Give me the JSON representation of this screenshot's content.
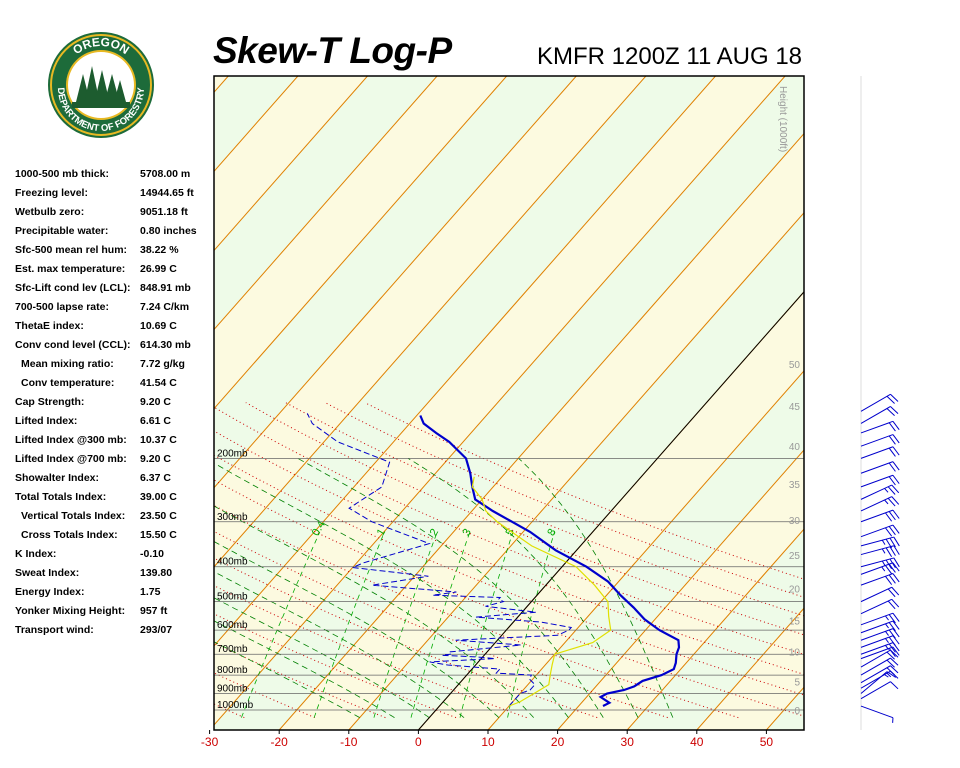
{
  "header": {
    "title": "Skew-T Log-P",
    "subtitle": "KMFR 1200Z 11 AUG 18"
  },
  "logo": {
    "top_text": "OREGON",
    "bottom_text": "DEPARTMENT OF FORESTRY",
    "colors": {
      "ring": "#1d6b3a",
      "gold": "#e8b923",
      "tree": "#1d5c2f"
    }
  },
  "stats": [
    {
      "label": "1000-500 mb thick:",
      "value": "5708.00 m"
    },
    {
      "label": "Freezing level:",
      "value": "14944.65 ft"
    },
    {
      "label": "Wetbulb zero:",
      "value": "9051.18 ft"
    },
    {
      "label": "Precipitable water:",
      "value": "0.80 inches"
    },
    {
      "label": "Sfc-500 mean rel hum:",
      "value": "38.22 %"
    },
    {
      "label": "Est. max temperature:",
      "value": "26.99 C"
    },
    {
      "label": "Sfc-Lift cond lev (LCL):",
      "value": "848.91 mb"
    },
    {
      "label": "700-500 lapse rate:",
      "value": "7.24 C/km"
    },
    {
      "label": "ThetaE index:",
      "value": "10.69 C"
    },
    {
      "label": "Conv cond level (CCL):",
      "value": "614.30 mb"
    },
    {
      "label": "Mean mixing ratio:",
      "value": "7.72 g/kg",
      "indent": true
    },
    {
      "label": "Conv temperature:",
      "value": "41.54 C",
      "indent": true
    },
    {
      "label": "Cap Strength:",
      "value": "9.20 C"
    },
    {
      "label": "Lifted Index:",
      "value": "6.61 C"
    },
    {
      "label": "Lifted Index @300 mb:",
      "value": "10.37 C"
    },
    {
      "label": "Lifted Index @700 mb:",
      "value": "9.20 C"
    },
    {
      "label": "Showalter Index:",
      "value": "6.37 C"
    },
    {
      "label": "Total Totals Index:",
      "value": "39.00 C"
    },
    {
      "label": "Vertical Totals Index:",
      "value": "23.50 C",
      "indent": true
    },
    {
      "label": "Cross Totals Index:",
      "value": "15.50 C",
      "indent": true
    },
    {
      "label": "K Index:",
      "value": "-0.10"
    },
    {
      "label": "Sweat Index:",
      "value": "139.80"
    },
    {
      "label": "Energy Index:",
      "value": "1.75"
    },
    {
      "label": "Yonker Mixing Height:",
      "value": "957 ft"
    },
    {
      "label": "Transport wind:",
      "value": "293/07"
    }
  ],
  "chart_data": {
    "type": "line",
    "title": "Skew-T Log-P",
    "xlim": [
      -30,
      50
    ],
    "x_ticks": [
      -30,
      -20,
      -10,
      0,
      10,
      20,
      30,
      40,
      50
    ],
    "pressure_levels": [
      200,
      300,
      400,
      500,
      600,
      700,
      800,
      900,
      1000
    ],
    "pressure_labels": [
      "200mb",
      "300mb",
      "400mb",
      "500mb",
      "600mb",
      "700mb",
      "800mb",
      "900mb",
      "1000mb"
    ],
    "height_axis_label": "Height (1000ft)",
    "height_ticks": [
      0,
      5,
      10,
      15,
      20,
      25,
      30,
      35,
      40,
      45,
      50
    ],
    "mixing_ratio_labels": [
      "0.4",
      "1",
      "2",
      "3",
      "5",
      "8"
    ],
    "colors": {
      "temperature": "#0000cc",
      "dewpoint": "#0000cc",
      "parcel": "#e0e000",
      "isotherm": "#e08000",
      "dry_adiabat": "#cc0000",
      "moist_adiabat": "#008000",
      "mixing_ratio": "#00aa00",
      "band_a": "#eefbe8",
      "band_b": "#fcfae0",
      "axis_tick": "#cc0000",
      "wind": "#0000cc"
    },
    "series": [
      {
        "type": "temperature",
        "points": [
          [
            975,
            23.5
          ],
          [
            955,
            24
          ],
          [
            920,
            22
          ],
          [
            900,
            22.5
          ],
          [
            880,
            24.5
          ],
          [
            860,
            25.5
          ],
          [
            830,
            26
          ],
          [
            800,
            28
          ],
          [
            770,
            29
          ],
          [
            740,
            28.5
          ],
          [
            700,
            27.5
          ],
          [
            670,
            27
          ],
          [
            640,
            26
          ],
          [
            600,
            22
          ],
          [
            560,
            18.5
          ],
          [
            520,
            15.5
          ],
          [
            480,
            12
          ],
          [
            440,
            8.5
          ],
          [
            400,
            3.5
          ],
          [
            360,
            -3
          ],
          [
            320,
            -9
          ],
          [
            280,
            -17
          ],
          [
            260,
            -21
          ],
          [
            240,
            -23
          ],
          [
            220,
            -25
          ],
          [
            200,
            -27.5
          ],
          [
            180,
            -32
          ],
          [
            170,
            -35
          ],
          [
            160,
            -38
          ],
          [
            152,
            -39.5
          ]
        ]
      },
      {
        "type": "dewpoint",
        "points": [
          [
            975,
            10
          ],
          [
            960,
            10
          ],
          [
            930,
            10
          ],
          [
            900,
            10
          ],
          [
            880,
            11
          ],
          [
            850,
            11
          ],
          [
            820,
            9.5
          ],
          [
            800,
            9.3
          ],
          [
            790,
            4
          ],
          [
            770,
            4
          ],
          [
            750,
            -4
          ],
          [
            735,
            -7
          ],
          [
            720,
            2
          ],
          [
            712,
            -1
          ],
          [
            705,
            -6
          ],
          [
            700,
            -5
          ],
          [
            690,
            -5.5
          ],
          [
            660,
            4
          ],
          [
            640,
            -6
          ],
          [
            620,
            8
          ],
          [
            600,
            9
          ],
          [
            590,
            9
          ],
          [
            570,
            4
          ],
          [
            552,
            -6
          ],
          [
            535,
            2
          ],
          [
            515,
            -6
          ],
          [
            500,
            -4
          ],
          [
            492,
            -5
          ],
          [
            487,
            -5
          ],
          [
            480,
            -15
          ],
          [
            470,
            -12
          ],
          [
            450,
            -25
          ],
          [
            425,
            -18
          ],
          [
            402,
            -30
          ],
          [
            390,
            -29
          ],
          [
            345,
            -22
          ],
          [
            300,
            -33
          ],
          [
            275,
            -38
          ],
          [
            240,
            -36
          ],
          [
            205,
            -38
          ],
          [
            180,
            -48
          ],
          [
            160,
            -54
          ],
          [
            150,
            -56
          ]
        ]
      },
      {
        "type": "parcel",
        "points": [
          [
            975,
            10
          ],
          [
            950,
            11
          ],
          [
            900,
            12
          ],
          [
            850,
            13
          ],
          [
            800,
            12
          ],
          [
            750,
            11
          ],
          [
            700,
            10
          ],
          [
            650,
            14
          ],
          [
            600,
            15
          ],
          [
            550,
            13
          ],
          [
            500,
            11
          ],
          [
            450,
            7
          ],
          [
            400,
            2
          ],
          [
            350,
            -7
          ],
          [
            300,
            -15
          ],
          [
            280,
            -18
          ],
          [
            260,
            -20
          ],
          [
            240,
            -23
          ],
          [
            225,
            -24
          ]
        ]
      }
    ],
    "wind_barbs": [
      {
        "p": 975,
        "dir": 290,
        "spd": 5
      },
      {
        "p": 930,
        "dir": 240,
        "spd": 10
      },
      {
        "p": 900,
        "dir": 230,
        "spd": 15
      },
      {
        "p": 870,
        "dir": 240,
        "spd": 15
      },
      {
        "p": 840,
        "dir": 240,
        "spd": 20
      },
      {
        "p": 800,
        "dir": 240,
        "spd": 20
      },
      {
        "p": 760,
        "dir": 240,
        "spd": 20
      },
      {
        "p": 720,
        "dir": 250,
        "spd": 20
      },
      {
        "p": 700,
        "dir": 250,
        "spd": 25
      },
      {
        "p": 670,
        "dir": 250,
        "spd": 25
      },
      {
        "p": 640,
        "dir": 250,
        "spd": 25
      },
      {
        "p": 610,
        "dir": 250,
        "spd": 25
      },
      {
        "p": 580,
        "dir": 250,
        "spd": 25
      },
      {
        "p": 540,
        "dir": 245,
        "spd": 20
      },
      {
        "p": 500,
        "dir": 245,
        "spd": 20
      },
      {
        "p": 450,
        "dir": 250,
        "spd": 30
      },
      {
        "p": 420,
        "dir": 250,
        "spd": 35
      },
      {
        "p": 400,
        "dir": 255,
        "spd": 35
      },
      {
        "p": 370,
        "dir": 255,
        "spd": 35
      },
      {
        "p": 350,
        "dir": 255,
        "spd": 35
      },
      {
        "p": 330,
        "dir": 250,
        "spd": 30
      },
      {
        "p": 300,
        "dir": 250,
        "spd": 30
      },
      {
        "p": 280,
        "dir": 245,
        "spd": 25
      },
      {
        "p": 260,
        "dir": 245,
        "spd": 25
      },
      {
        "p": 240,
        "dir": 250,
        "spd": 20
      },
      {
        "p": 220,
        "dir": 250,
        "spd": 20
      },
      {
        "p": 200,
        "dir": 250,
        "spd": 20
      },
      {
        "p": 185,
        "dir": 250,
        "spd": 20
      },
      {
        "p": 170,
        "dir": 250,
        "spd": 20
      },
      {
        "p": 160,
        "dir": 240,
        "spd": 20
      },
      {
        "p": 148,
        "dir": 240,
        "spd": 20
      }
    ]
  }
}
